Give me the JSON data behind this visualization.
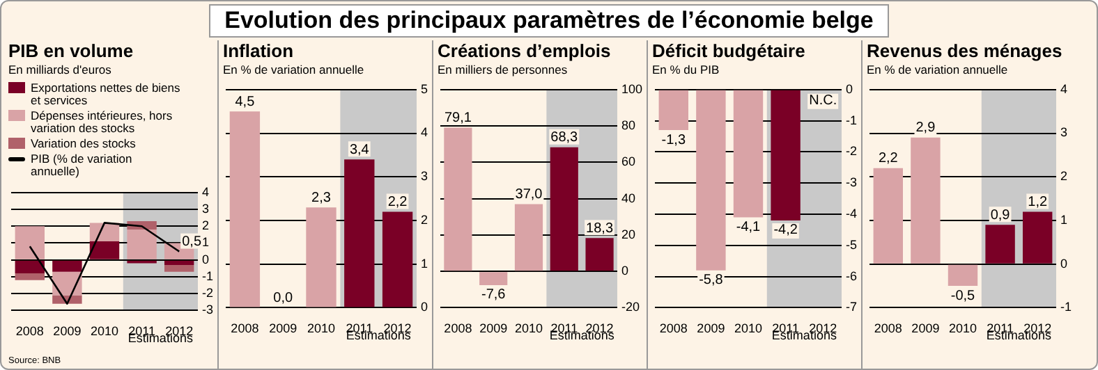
{
  "chart_data": [
    {
      "type": "bar",
      "title": "PIB en volume",
      "subtitle": "En milliards d'euros",
      "stacked": true,
      "legend": "top",
      "grid": "y",
      "marker": "none",
      "categories": [
        "2008",
        "2009",
        "2010",
        "2011",
        "2012"
      ],
      "series": [
        {
          "name": "Exportations nettes de biens et services",
          "color": "#7a0026",
          "values": [
            -0.8,
            -0.7,
            1.1,
            -0.2,
            -0.3
          ]
        },
        {
          "name": "Dépenses intérieures, hors variation des stocks",
          "color": "#d9a3a6",
          "values": [
            2.0,
            -1.4,
            1.1,
            1.8,
            1.0
          ]
        },
        {
          "name": "Variation des stocks",
          "color": "#b0616a",
          "values": [
            -0.4,
            -0.5,
            null,
            0.5,
            -0.4
          ]
        },
        {
          "name": "PIB (% de variation annuelle)",
          "type": "line",
          "color": "#000000",
          "values": [
            0.8,
            -2.6,
            2.2,
            2.0,
            0.5
          ],
          "value_labels": [
            null,
            null,
            null,
            null,
            "0,5"
          ]
        }
      ],
      "ylim": [
        -3,
        4
      ],
      "yticks": [
        -3,
        -2,
        -1,
        0,
        1,
        2,
        3,
        4
      ],
      "bands": [
        {
          "axis": "x",
          "from": "2011",
          "to": "2012",
          "label": "Estimations",
          "color": "#c9c9c9"
        }
      ],
      "annotations": [
        "Evolution des principaux paramètres de l’économie belge",
        "Source: BNB"
      ]
    },
    {
      "type": "bar",
      "title": "Inflation",
      "subtitle": "En % de variation annuelle",
      "grid": "y",
      "categories": [
        "2008",
        "2009",
        "2010",
        "2011",
        "2012"
      ],
      "values": [
        4.5,
        0.0,
        2.3,
        3.4,
        2.2
      ],
      "colors": [
        "#d9a3a6",
        "#d9a3a6",
        "#d9a3a6",
        "#7a0026",
        "#7a0026"
      ],
      "value_labels": [
        "4,5",
        "0,0",
        "2,3",
        "3,4",
        "2,2"
      ],
      "ylim": [
        0,
        5
      ],
      "yticks": [
        0,
        1,
        2,
        3,
        4,
        5
      ],
      "bands": [
        {
          "axis": "x",
          "from": "2011",
          "to": "2012",
          "label": "Estimations",
          "color": "#c9c9c9"
        }
      ]
    },
    {
      "type": "bar",
      "title": "Créations d’emplois",
      "subtitle": "En milliers de personnes",
      "grid": "y",
      "categories": [
        "2008",
        "2009",
        "2010",
        "2011",
        "2012"
      ],
      "values": [
        79.1,
        -7.6,
        37.0,
        68.3,
        18.3
      ],
      "colors": [
        "#d9a3a6",
        "#d9a3a6",
        "#d9a3a6",
        "#7a0026",
        "#7a0026"
      ],
      "value_labels": [
        "79,1",
        "-7,6",
        "37,0",
        "68,3",
        "18,3"
      ],
      "ylim": [
        -20,
        100
      ],
      "yticks": [
        -20,
        0,
        20,
        40,
        60,
        80,
        100
      ],
      "bands": [
        {
          "axis": "x",
          "from": "2011",
          "to": "2012",
          "label": "Estimations",
          "color": "#c9c9c9"
        }
      ]
    },
    {
      "type": "bar",
      "title": "Déficit budgétaire",
      "subtitle": "En % du PIB",
      "grid": "y",
      "categories": [
        "2008",
        "2009",
        "2010",
        "2011",
        "2012"
      ],
      "values": [
        -1.3,
        -5.8,
        -4.1,
        -4.2,
        null
      ],
      "colors": [
        "#d9a3a6",
        "#d9a3a6",
        "#d9a3a6",
        "#7a0026",
        "#7a0026"
      ],
      "value_labels": [
        "-1,3",
        "-5,8",
        "-4,1",
        "-4,2",
        "N.C."
      ],
      "ylim": [
        -7,
        0
      ],
      "yticks": [
        -7,
        -6,
        -5,
        -4,
        -3,
        -2,
        -1,
        0
      ],
      "bands": [
        {
          "axis": "x",
          "from": "2011",
          "to": "2012",
          "label": "Estimations",
          "color": "#c9c9c9"
        }
      ]
    },
    {
      "type": "bar",
      "title": "Revenus des ménages",
      "subtitle": "En % de variation annuelle",
      "grid": "y",
      "categories": [
        "2008",
        "2009",
        "2010",
        "2011",
        "2012"
      ],
      "values": [
        2.2,
        2.9,
        -0.5,
        0.9,
        1.2
      ],
      "colors": [
        "#d9a3a6",
        "#d9a3a6",
        "#d9a3a6",
        "#7a0026",
        "#7a0026"
      ],
      "value_labels": [
        "2,2",
        "2,9",
        "-0,5",
        "0,9",
        "1,2"
      ],
      "ylim": [
        -1,
        4
      ],
      "yticks": [
        -1,
        0,
        1,
        2,
        3,
        4
      ],
      "bands": [
        {
          "axis": "x",
          "from": "2011",
          "to": "2012",
          "label": "Estimations",
          "color": "#c9c9c9"
        }
      ]
    }
  ]
}
